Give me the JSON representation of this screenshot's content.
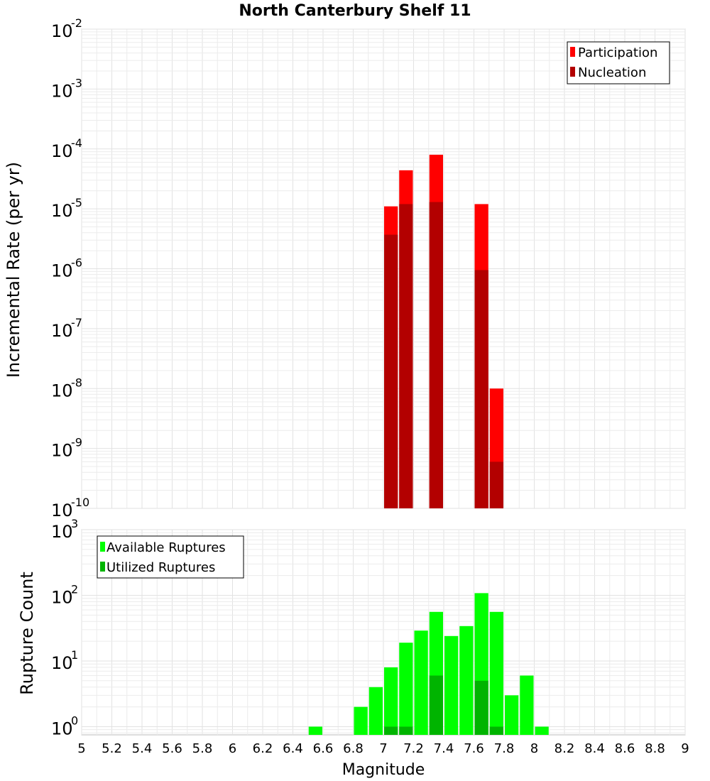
{
  "chart_data": [
    {
      "type": "bar",
      "title": "North Canterbury Shelf 11",
      "xlabel": "",
      "ylabel": "Incremental Rate (per yr)",
      "yscale": "log",
      "xlim": [
        5,
        9
      ],
      "ylim": [
        1e-10,
        0.01
      ],
      "ytick_exponents": [
        -2,
        -3,
        -4,
        -5,
        -6,
        -7,
        -8,
        -9,
        -10
      ],
      "legend_position": "top-right",
      "series": [
        {
          "name": "Participation",
          "color": "#ff0000",
          "points": [
            {
              "x": 7.05,
              "y": 1.1e-05
            },
            {
              "x": 7.15,
              "y": 4.4e-05
            },
            {
              "x": 7.35,
              "y": 8e-05
            },
            {
              "x": 7.65,
              "y": 1.2e-05
            },
            {
              "x": 7.75,
              "y": 1e-08
            }
          ]
        },
        {
          "name": "Nucleation",
          "color": "#b30000",
          "points": [
            {
              "x": 7.05,
              "y": 3.7e-06
            },
            {
              "x": 7.15,
              "y": 1.2e-05
            },
            {
              "x": 7.35,
              "y": 1.3e-05
            },
            {
              "x": 7.65,
              "y": 9.5e-07
            },
            {
              "x": 7.75,
              "y": 6e-10
            }
          ]
        }
      ]
    },
    {
      "type": "bar",
      "title": "",
      "xlabel": "Magnitude",
      "ylabel": "Rupture Count",
      "yscale": "log",
      "xlim": [
        5,
        9
      ],
      "ylim": [
        0.75,
        1000
      ],
      "ytick_exponents": [
        3,
        2,
        1,
        0
      ],
      "xticks": [
        "5",
        "5.2",
        "5.4",
        "5.6",
        "5.8",
        "6",
        "6.2",
        "6.4",
        "6.6",
        "6.8",
        "7",
        "7.2",
        "7.4",
        "7.6",
        "7.8",
        "8",
        "8.2",
        "8.4",
        "8.6",
        "8.8",
        "9"
      ],
      "legend_position": "top-left",
      "series": [
        {
          "name": "Available Ruptures",
          "color": "#00ff00",
          "points": [
            {
              "x": 6.55,
              "y": 1
            },
            {
              "x": 6.85,
              "y": 2
            },
            {
              "x": 6.95,
              "y": 4
            },
            {
              "x": 7.05,
              "y": 8
            },
            {
              "x": 7.15,
              "y": 19
            },
            {
              "x": 7.25,
              "y": 29
            },
            {
              "x": 7.35,
              "y": 56
            },
            {
              "x": 7.45,
              "y": 24
            },
            {
              "x": 7.55,
              "y": 34
            },
            {
              "x": 7.65,
              "y": 108
            },
            {
              "x": 7.75,
              "y": 56
            },
            {
              "x": 7.85,
              "y": 3
            },
            {
              "x": 7.95,
              "y": 6
            },
            {
              "x": 8.05,
              "y": 1
            }
          ]
        },
        {
          "name": "Utilized Ruptures",
          "color": "#00b400",
          "points": [
            {
              "x": 7.05,
              "y": 1
            },
            {
              "x": 7.15,
              "y": 1
            },
            {
              "x": 7.35,
              "y": 6
            },
            {
              "x": 7.65,
              "y": 5
            },
            {
              "x": 7.75,
              "y": 1
            }
          ]
        }
      ]
    }
  ]
}
